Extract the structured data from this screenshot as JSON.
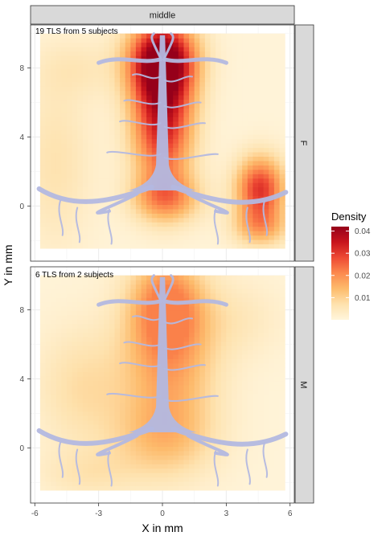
{
  "chart_data": {
    "type": "heatmap",
    "xlabel": "X in mm",
    "ylabel": "Y in mm",
    "xlim": [
      -6.2,
      6.2
    ],
    "ylim": [
      -3.2,
      10.5
    ],
    "x_ticks": [
      -6,
      -3,
      0,
      3,
      6
    ],
    "x_tick_labels": [
      "-6",
      "-3",
      "0",
      "3",
      "6"
    ],
    "y_ticks": [
      0,
      4,
      8
    ],
    "y_tick_labels": [
      "0",
      "4",
      "8"
    ],
    "column_strip": "middle",
    "legend": {
      "title": "Density",
      "position": "right",
      "range": [
        0,
        0.042
      ],
      "ticks": [
        0.01,
        0.02,
        0.03,
        0.04
      ],
      "tick_labels": [
        "0.01",
        "0.02",
        "0.03",
        "0.04"
      ],
      "colors": [
        "#fff5dc",
        "#fee2ae",
        "#fdbb6c",
        "#fc8a4e",
        "#ee4a34",
        "#c8141c",
        "#96001a"
      ]
    },
    "panels": [
      {
        "strip": "F",
        "annotation": "19 TLS from 5 subjects",
        "density_peak": 0.042,
        "hotspots": [
          {
            "x": 0.0,
            "y": 8.5,
            "sx": 1.1,
            "sy": 1.6,
            "w": 0.04
          },
          {
            "x": 0.0,
            "y": 5.0,
            "sx": 1.0,
            "sy": 2.6,
            "w": 0.034
          },
          {
            "x": 0.2,
            "y": 0.5,
            "sx": 1.1,
            "sy": 1.0,
            "w": 0.018
          },
          {
            "x": 4.6,
            "y": 1.0,
            "sx": 0.8,
            "sy": 1.3,
            "w": 0.03
          },
          {
            "x": 4.6,
            "y": -1.2,
            "sx": 0.9,
            "sy": 0.8,
            "w": 0.014
          },
          {
            "x": -5.0,
            "y": 2.5,
            "sx": 1.2,
            "sy": 3.5,
            "w": 0.006
          },
          {
            "x": -4.0,
            "y": 8.0,
            "sx": 1.5,
            "sy": 1.2,
            "w": 0.004
          }
        ]
      },
      {
        "strip": "M",
        "annotation": "6 TLS from 2 subjects",
        "density_peak": 0.022,
        "hotspots": [
          {
            "x": 0.2,
            "y": 8.3,
            "sx": 1.2,
            "sy": 2.0,
            "w": 0.02
          },
          {
            "x": 0.3,
            "y": 4.5,
            "sx": 1.6,
            "sy": 3.0,
            "w": 0.015
          },
          {
            "x": 0.0,
            "y": 0.5,
            "sx": 1.7,
            "sy": 1.6,
            "w": 0.009
          },
          {
            "x": -3.8,
            "y": 3.5,
            "sx": 1.5,
            "sy": 2.5,
            "w": 0.007
          },
          {
            "x": -3.5,
            "y": -1.5,
            "sx": 1.6,
            "sy": 1.0,
            "w": 0.005
          },
          {
            "x": 3.5,
            "y": 7.5,
            "sx": 1.5,
            "sy": 1.6,
            "w": 0.004
          }
        ]
      }
    ],
    "overlay": {
      "name": "airway tree silhouette",
      "color": "#b3b8e0"
    }
  }
}
